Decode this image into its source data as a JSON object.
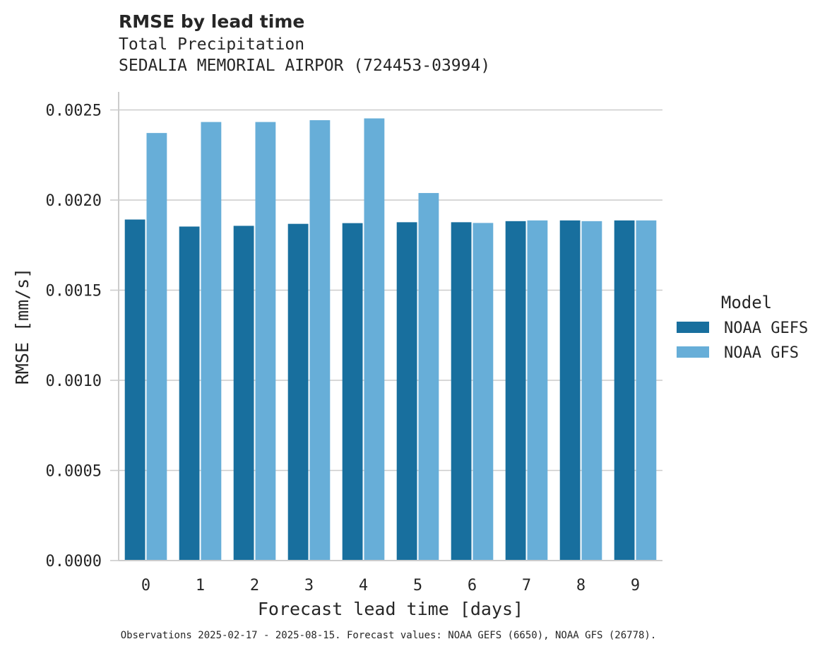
{
  "title": "RMSE by lead time",
  "subtitle_line1": "Total Precipitation",
  "subtitle_line2": "SEDALIA MEMORIAL AIRPOR (724453-03994)",
  "footer": "Observations 2025-02-17 - 2025-08-15. Forecast values: NOAA GEFS (6650), NOAA GFS (26778).",
  "colors": {
    "NOAA GEFS": "#186f9e",
    "NOAA GFS": "#67aed8"
  },
  "chart_data": {
    "type": "bar",
    "xlabel": "Forecast lead time [days]",
    "ylabel": "RMSE [mm/s]",
    "categories": [
      "0",
      "1",
      "2",
      "3",
      "4",
      "5",
      "6",
      "7",
      "8",
      "9"
    ],
    "series": [
      {
        "name": "NOAA GEFS",
        "values": [
          0.001892,
          0.001853,
          0.001857,
          0.001868,
          0.001872,
          0.001877,
          0.001877,
          0.001883,
          0.001887,
          0.001887
        ]
      },
      {
        "name": "NOAA GFS",
        "values": [
          0.002372,
          0.002433,
          0.002433,
          0.002443,
          0.002453,
          0.002039,
          0.001873,
          0.001887,
          0.001883,
          0.001887
        ]
      }
    ],
    "ylim": [
      0,
      0.0026
    ],
    "yticks": [
      "0.0000",
      "0.0005",
      "0.0010",
      "0.0015",
      "0.0020",
      "0.0025"
    ],
    "grid": "horizontal",
    "legend": {
      "title": "Model",
      "position": "right"
    }
  }
}
